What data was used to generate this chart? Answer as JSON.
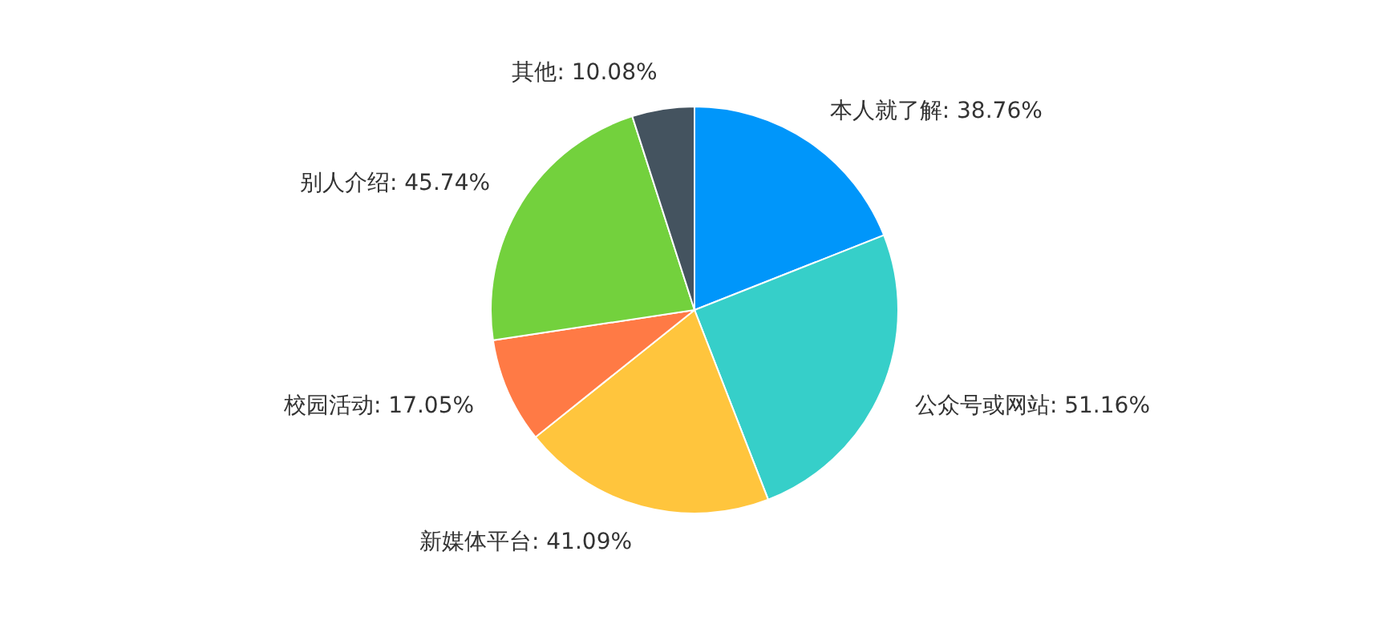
{
  "chart_data": {
    "type": "pie",
    "categories": [
      "本人就了解",
      "公众号或网站",
      "新媒体平台",
      "校园活动",
      "别人介绍",
      "其他"
    ],
    "values": [
      38.76,
      51.16,
      41.09,
      17.05,
      45.74,
      10.08
    ],
    "value_labels": [
      "38.76%",
      "51.16%",
      "41.09%",
      "17.05%",
      "45.74%",
      "10.08%"
    ],
    "colors": [
      "#0096fa",
      "#36cfc9",
      "#ffc53d",
      "#ff7a45",
      "#73d13d",
      "#44535f"
    ]
  }
}
